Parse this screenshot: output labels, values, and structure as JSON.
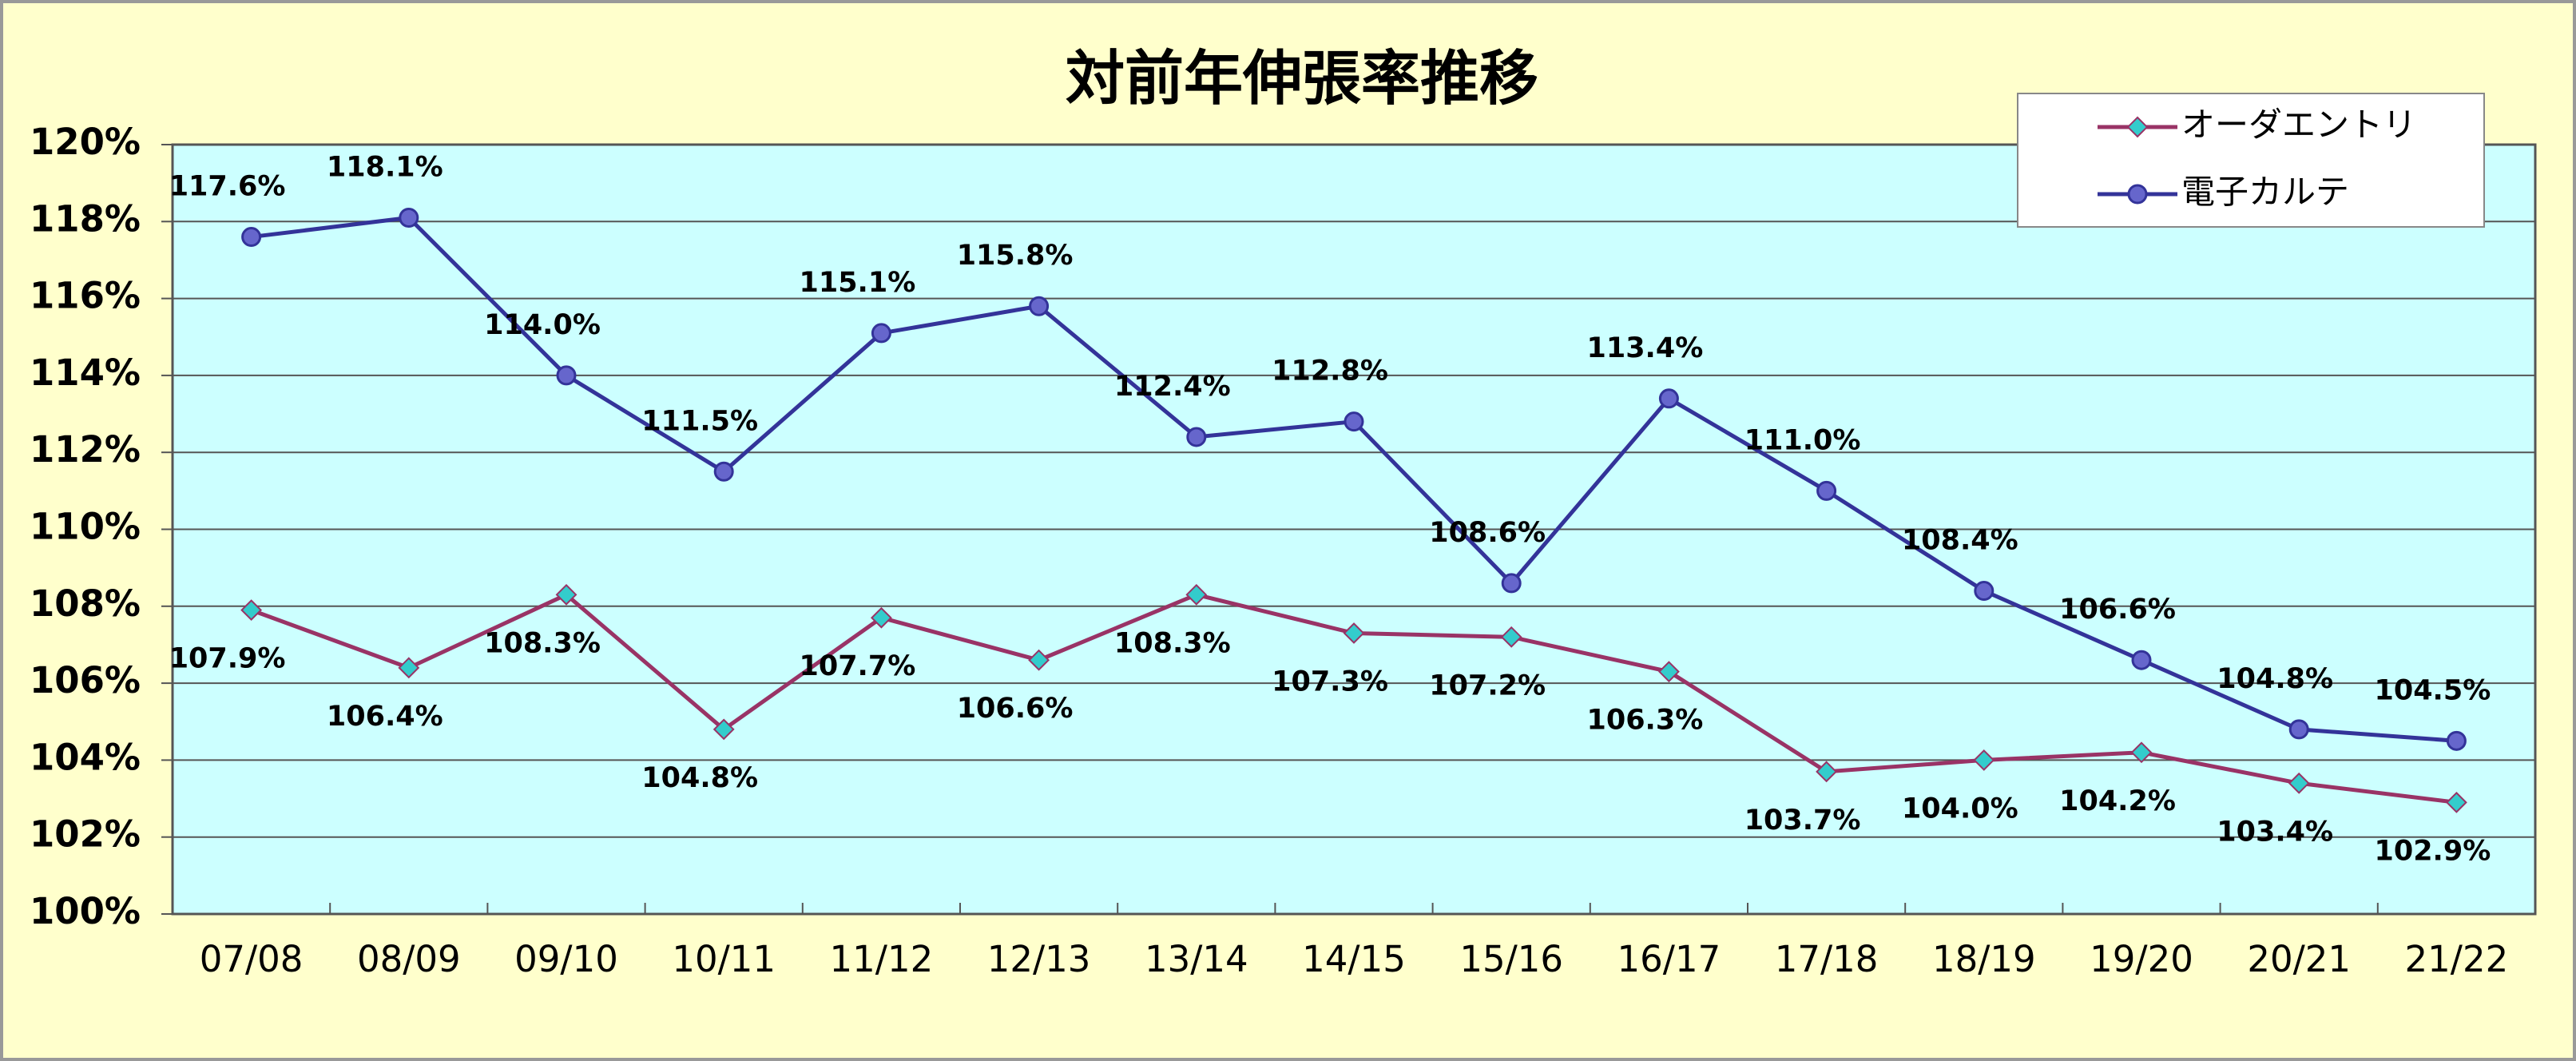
{
  "chart_data": {
    "type": "line",
    "title": "対前年伸張率推移",
    "categories": [
      "07/08",
      "08/09",
      "09/10",
      "10/11",
      "11/12",
      "12/13",
      "13/14",
      "14/15",
      "15/16",
      "16/17",
      "17/18",
      "18/19",
      "19/20",
      "20/21",
      "21/22"
    ],
    "series": [
      {
        "name": "オーダエントリ",
        "color": "#993366",
        "marker": "diamond",
        "marker_color": "#33cccc",
        "label_position": "below",
        "values": [
          107.9,
          106.4,
          108.3,
          104.8,
          107.7,
          106.6,
          108.3,
          107.3,
          107.2,
          106.3,
          103.7,
          104.0,
          104.2,
          103.4,
          102.9
        ],
        "value_labels": [
          "107.9%",
          "106.4%",
          "108.3%",
          "104.8%",
          "107.7%",
          "106.6%",
          "108.3%",
          "107.3%",
          "107.2%",
          "106.3%",
          "103.7%",
          "104.0%",
          "104.2%",
          "103.4%",
          "102.9%"
        ]
      },
      {
        "name": "電子カルテ",
        "color": "#333399",
        "marker": "circle",
        "marker_color": "#6666cc",
        "label_position": "above",
        "values": [
          117.6,
          118.1,
          114.0,
          111.5,
          115.1,
          115.8,
          112.4,
          112.8,
          108.6,
          113.4,
          111.0,
          108.4,
          106.6,
          104.8,
          104.5
        ],
        "value_labels": [
          "117.6%",
          "118.1%",
          "114.0%",
          "111.5%",
          "115.1%",
          "115.8%",
          "112.4%",
          "112.8%",
          "108.6%",
          "113.4%",
          "111.0%",
          "108.4%",
          "106.6%",
          "104.8%",
          "104.5%"
        ]
      }
    ],
    "ylim": [
      100,
      120
    ],
    "yticks": [
      {
        "value": 100,
        "label": "100%"
      },
      {
        "value": 102,
        "label": "102%"
      },
      {
        "value": 104,
        "label": "104%"
      },
      {
        "value": 106,
        "label": "106%"
      },
      {
        "value": 108,
        "label": "108%"
      },
      {
        "value": 110,
        "label": "110%"
      },
      {
        "value": 112,
        "label": "112%"
      },
      {
        "value": 114,
        "label": "114%"
      },
      {
        "value": 116,
        "label": "116%"
      },
      {
        "value": 118,
        "label": "118%"
      },
      {
        "value": 120,
        "label": "120%"
      }
    ],
    "grid": true,
    "legend": "upper right"
  }
}
